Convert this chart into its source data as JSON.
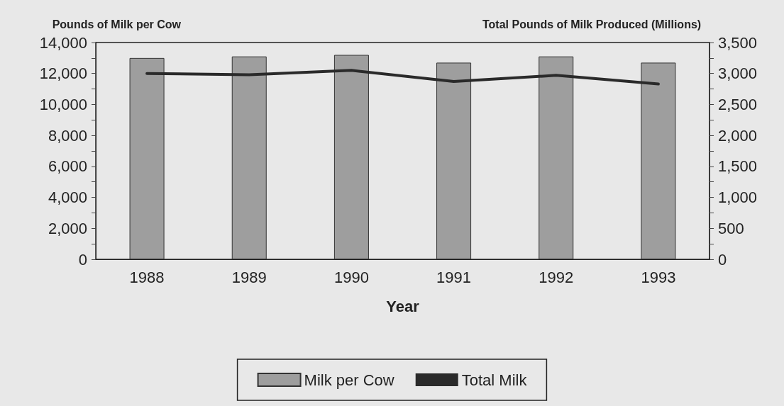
{
  "chart_data": {
    "type": "bar",
    "ylabel": "Pounds of Milk per Cow",
    "y2label": "Total Pounds of Milk Produced (Millions)",
    "xlabel": "Year",
    "categories": [
      "1988",
      "1989",
      "1990",
      "1991",
      "1992",
      "1993"
    ],
    "series": [
      {
        "name": "Milk per Cow",
        "color": "#9e9e9e",
        "values": [
          13000,
          13100,
          13200,
          12700,
          13100,
          12700
        ]
      },
      {
        "name": "Total Milk",
        "type": "line",
        "axis": "y2",
        "color": "#2a2a2a",
        "values": [
          3000,
          2980,
          3050,
          2870,
          2970,
          2830
        ]
      }
    ],
    "ylim": [
      0,
      14000
    ],
    "yticks": [
      0,
      {
        "value": 1000,
        "label": null
      },
      {
        "value": 2000,
        "label": "2,000"
      },
      {
        "value": 3000,
        "label": null
      },
      {
        "value": 4000,
        "label": "4,000"
      },
      {
        "value": 5000,
        "label": null
      },
      {
        "value": 6000,
        "label": "6,000"
      },
      {
        "value": 7000,
        "label": null
      },
      {
        "value": 8000,
        "label": "8,000"
      },
      {
        "value": 9000,
        "label": null
      },
      {
        "value": 10000,
        "label": "10,000"
      },
      {
        "value": 11000,
        "label": null
      },
      {
        "value": 12000,
        "label": "12,000"
      },
      {
        "value": 13000,
        "label": null
      },
      {
        "value": 14000,
        "label": "14,000"
      }
    ],
    "y2lim": [
      0,
      3500
    ],
    "y2ticks": [
      0,
      {
        "value": 250,
        "label": null
      },
      500,
      {
        "value": 750,
        "label": null
      },
      {
        "value": 1000,
        "label": "1,000"
      },
      {
        "value": 1250,
        "label": null
      },
      {
        "value": 1500,
        "label": "1,500"
      },
      {
        "value": 1750,
        "label": null
      },
      {
        "value": 2000,
        "label": "2,000"
      },
      {
        "value": 2250,
        "label": null
      },
      {
        "value": 2500,
        "label": "2,500"
      },
      {
        "value": 2750,
        "label": null
      },
      {
        "value": 3000,
        "label": "3,000"
      },
      {
        "value": 3250,
        "label": null
      },
      {
        "value": 3500,
        "label": "3,500"
      }
    ],
    "grid": false,
    "legend": "bottom",
    "marker": "none",
    "line_style": "solid"
  }
}
